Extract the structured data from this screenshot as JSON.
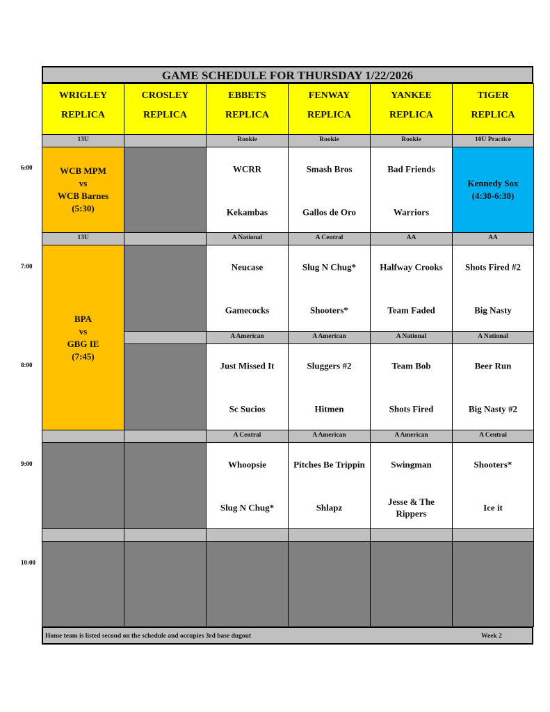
{
  "title": "GAME SCHEDULE FOR THURSDAY 1/22/2026",
  "fields": [
    {
      "name": "WRIGLEY",
      "sub": "REPLICA"
    },
    {
      "name": "CROSLEY",
      "sub": "REPLICA"
    },
    {
      "name": "EBBETS",
      "sub": "REPLICA"
    },
    {
      "name": "FENWAY",
      "sub": "REPLICA"
    },
    {
      "name": "YANKEE",
      "sub": "REPLICA"
    },
    {
      "name": "TIGER",
      "sub": "REPLICA"
    }
  ],
  "times": [
    "6:00",
    "7:00",
    "8:00",
    "9:00",
    "10:00"
  ],
  "colors": {
    "header": "#ffff00",
    "label": "#c0c0c0",
    "unused": "#808080",
    "special_13u": "#ffc000",
    "practice": "#00b0f0"
  },
  "rows": [
    {
      "labels": [
        "13U",
        "",
        "Rookie",
        "Rookie",
        "Rookie",
        "10U Practice"
      ],
      "games": [
        {
          "text": "WCB MPM\nvs\nWCB Barnes\n(5:30)",
          "style": "orange"
        },
        {
          "style": "dark"
        },
        {
          "teams": [
            "WCRR",
            "Kekambas"
          ]
        },
        {
          "teams": [
            "Smash Bros",
            "Gallos de Oro"
          ]
        },
        {
          "teams": [
            "Bad Friends",
            "Warriors"
          ]
        },
        {
          "text": "Kennedy Sox\n(4:30-6:30)",
          "style": "blue"
        }
      ]
    },
    {
      "labels": [
        "13U",
        "",
        "A National",
        "A Central",
        "AA",
        "AA"
      ],
      "games": [
        {
          "text": "BPA\nvs\nGBG IE\n(7:45)",
          "style": "orange",
          "span": 2
        },
        {
          "style": "dark"
        },
        {
          "teams": [
            "Neucase",
            "Gamecocks"
          ]
        },
        {
          "teams": [
            "Slug N Chug*",
            "Shooters*"
          ]
        },
        {
          "teams": [
            "Halfway Crooks",
            "Team Faded"
          ]
        },
        {
          "teams": [
            "Shots Fired #2",
            "Big Nasty"
          ]
        }
      ]
    },
    {
      "labels": [
        null,
        "",
        "A American",
        "A American",
        "A National",
        "A National"
      ],
      "games": [
        null,
        {
          "style": "dark"
        },
        {
          "teams": [
            "Just Missed It",
            "Sc Sucios"
          ]
        },
        {
          "teams": [
            "Sluggers #2",
            "Hitmen"
          ]
        },
        {
          "teams": [
            "Team Bob",
            "Shots Fired"
          ]
        },
        {
          "teams": [
            "Beer Run",
            "Big Nasty #2"
          ]
        }
      ]
    },
    {
      "labels": [
        "",
        "",
        "A Central",
        "A American",
        "A American",
        "A Central"
      ],
      "games": [
        {
          "style": "dark"
        },
        {
          "style": "dark"
        },
        {
          "teams": [
            "Whoopsie",
            "Slug N Chug*"
          ]
        },
        {
          "teams": [
            "Pitches Be Trippin",
            "Shlapz"
          ]
        },
        {
          "teams": [
            "Swingman",
            "Jesse & The Rippers"
          ]
        },
        {
          "teams": [
            "Shooters*",
            "Ice it"
          ]
        }
      ]
    },
    {
      "labels": [
        "",
        "",
        "",
        "",
        "",
        ""
      ],
      "games": [
        {
          "style": "dark"
        },
        {
          "style": "dark"
        },
        {
          "style": "dark"
        },
        {
          "style": "dark"
        },
        {
          "style": "dark"
        },
        {
          "style": "dark"
        }
      ]
    }
  ],
  "footer": {
    "note": "Home team is listed second on the schedule and occupies 3rd base dugout",
    "week": "Week 2"
  }
}
